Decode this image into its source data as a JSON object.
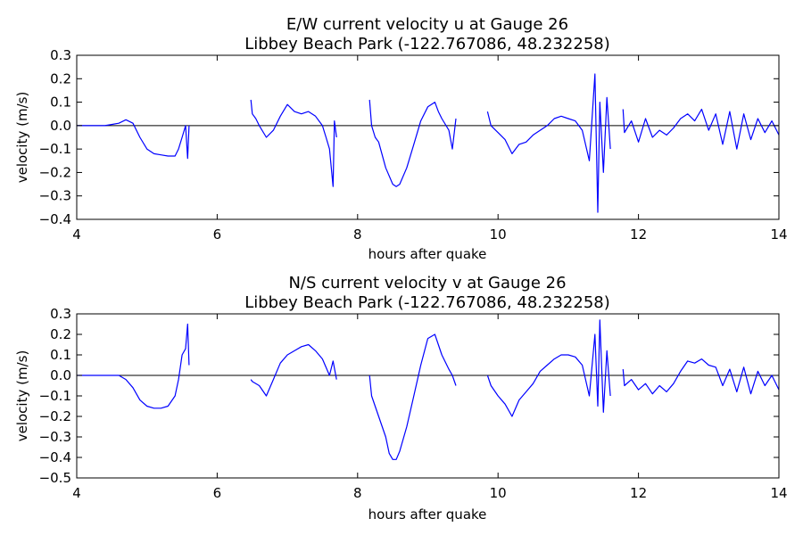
{
  "chart_data": [
    {
      "type": "line",
      "title": "E/W current velocity u at Gauge 26",
      "subtitle": "Libbey Beach Park  (-122.767086, 48.232258)",
      "xlabel": "hours after quake",
      "ylabel": "velocity (m/s)",
      "xlim": [
        4,
        14
      ],
      "ylim": [
        -0.4,
        0.3
      ],
      "xticks": [
        "4",
        "6",
        "8",
        "10",
        "12",
        "14"
      ],
      "yticks": [
        "0.3",
        "0.2",
        "0.1",
        "0.0",
        "−0.1",
        "−0.2",
        "−0.3",
        "−0.4"
      ],
      "zero_line": true,
      "grid": false,
      "series": [
        {
          "color": "#0000ff",
          "segments": [
            {
              "x": [
                4.0,
                4.2,
                4.4,
                4.6,
                4.7,
                4.8,
                4.9,
                5.0,
                5.1,
                5.2,
                5.3,
                5.4,
                5.45,
                5.5,
                5.55,
                5.58,
                5.6
              ],
              "y": [
                0.0,
                0.0,
                0.0,
                0.01,
                0.025,
                0.01,
                -0.05,
                -0.1,
                -0.12,
                -0.125,
                -0.13,
                -0.13,
                -0.1,
                -0.05,
                -0.0,
                -0.14,
                0.0
              ]
            },
            {
              "x": [
                6.48,
                6.5,
                6.55,
                6.6,
                6.7,
                6.8,
                6.9,
                7.0,
                7.1,
                7.2,
                7.3,
                7.4,
                7.5,
                7.55,
                7.6,
                7.65,
                7.67,
                7.7
              ],
              "y": [
                0.11,
                0.05,
                0.03,
                0.0,
                -0.05,
                -0.02,
                0.04,
                0.09,
                0.06,
                0.05,
                0.06,
                0.04,
                0.0,
                -0.05,
                -0.1,
                -0.26,
                0.02,
                -0.05
              ]
            },
            {
              "x": [
                8.17,
                8.2,
                8.25,
                8.3,
                8.4,
                8.5,
                8.55,
                8.6,
                8.7,
                8.8,
                8.9,
                9.0,
                9.1,
                9.15,
                9.2,
                9.3,
                9.35,
                9.4
              ],
              "y": [
                0.11,
                0.0,
                -0.05,
                -0.07,
                -0.18,
                -0.25,
                -0.26,
                -0.25,
                -0.18,
                -0.08,
                0.02,
                0.08,
                0.1,
                0.06,
                0.03,
                -0.02,
                -0.1,
                0.03
              ]
            },
            {
              "x": [
                9.85,
                9.9,
                10.0,
                10.1,
                10.2,
                10.3,
                10.4,
                10.5,
                10.6,
                10.7,
                10.8,
                10.9,
                11.0,
                11.1,
                11.2,
                11.3,
                11.38,
                11.42,
                11.45,
                11.5,
                11.55,
                11.6
              ],
              "y": [
                0.06,
                0.0,
                -0.03,
                -0.06,
                -0.12,
                -0.08,
                -0.07,
                -0.04,
                -0.02,
                0.0,
                0.03,
                0.04,
                0.03,
                0.02,
                -0.02,
                -0.15,
                0.22,
                -0.37,
                0.1,
                -0.2,
                0.12,
                -0.1
              ]
            },
            {
              "x": [
                11.78,
                11.8,
                11.9,
                12.0,
                12.1,
                12.2,
                12.3,
                12.4,
                12.5,
                12.6,
                12.7,
                12.8,
                12.9,
                13.0,
                13.1,
                13.2,
                13.3,
                13.4,
                13.5,
                13.6,
                13.7,
                13.8,
                13.9,
                14.0
              ],
              "y": [
                0.07,
                -0.03,
                0.02,
                -0.07,
                0.03,
                -0.05,
                -0.02,
                -0.04,
                -0.01,
                0.03,
                0.05,
                0.02,
                0.07,
                -0.02,
                0.05,
                -0.08,
                0.06,
                -0.1,
                0.05,
                -0.06,
                0.03,
                -0.03,
                0.02,
                -0.04
              ]
            }
          ]
        }
      ]
    },
    {
      "type": "line",
      "title": "N/S current velocity v at Gauge 26",
      "subtitle": "Libbey Beach Park  (-122.767086, 48.232258)",
      "xlabel": "hours after quake",
      "ylabel": "velocity (m/s)",
      "xlim": [
        4,
        14
      ],
      "ylim": [
        -0.5,
        0.3
      ],
      "xticks": [
        "4",
        "6",
        "8",
        "10",
        "12",
        "14"
      ],
      "yticks": [
        "0.3",
        "0.2",
        "0.1",
        "0.0",
        "−0.1",
        "−0.2",
        "−0.3",
        "−0.4",
        "−0.5"
      ],
      "zero_line": true,
      "grid": false,
      "series": [
        {
          "color": "#0000ff",
          "segments": [
            {
              "x": [
                4.0,
                4.2,
                4.4,
                4.6,
                4.7,
                4.8,
                4.9,
                5.0,
                5.1,
                5.2,
                5.3,
                5.4,
                5.45,
                5.5,
                5.55,
                5.58,
                5.6
              ],
              "y": [
                0.0,
                0.0,
                0.0,
                0.0,
                -0.02,
                -0.06,
                -0.12,
                -0.15,
                -0.16,
                -0.16,
                -0.15,
                -0.1,
                -0.02,
                0.1,
                0.13,
                0.25,
                0.05
              ]
            },
            {
              "x": [
                6.48,
                6.5,
                6.6,
                6.7,
                6.8,
                6.9,
                7.0,
                7.1,
                7.2,
                7.3,
                7.4,
                7.5,
                7.6,
                7.65,
                7.7
              ],
              "y": [
                -0.02,
                -0.03,
                -0.05,
                -0.1,
                -0.02,
                0.06,
                0.1,
                0.12,
                0.14,
                0.15,
                0.12,
                0.08,
                0.0,
                0.07,
                -0.02
              ]
            },
            {
              "x": [
                8.17,
                8.2,
                8.3,
                8.4,
                8.45,
                8.5,
                8.55,
                8.6,
                8.7,
                8.8,
                8.9,
                9.0,
                9.1,
                9.15,
                9.2,
                9.3,
                9.35,
                9.4
              ],
              "y": [
                0.0,
                -0.1,
                -0.2,
                -0.3,
                -0.38,
                -0.41,
                -0.41,
                -0.37,
                -0.25,
                -0.1,
                0.05,
                0.18,
                0.2,
                0.15,
                0.1,
                0.03,
                0.0,
                -0.05
              ]
            },
            {
              "x": [
                9.85,
                9.9,
                10.0,
                10.1,
                10.2,
                10.3,
                10.4,
                10.5,
                10.6,
                10.7,
                10.8,
                10.9,
                11.0,
                11.1,
                11.2,
                11.3,
                11.38,
                11.42,
                11.45,
                11.5,
                11.55,
                11.6
              ],
              "y": [
                0.0,
                -0.05,
                -0.1,
                -0.14,
                -0.2,
                -0.12,
                -0.08,
                -0.04,
                0.02,
                0.05,
                0.08,
                0.1,
                0.1,
                0.09,
                0.05,
                -0.1,
                0.2,
                -0.15,
                0.27,
                -0.18,
                0.12,
                -0.1
              ]
            },
            {
              "x": [
                11.78,
                11.8,
                11.9,
                12.0,
                12.1,
                12.2,
                12.3,
                12.4,
                12.5,
                12.6,
                12.7,
                12.8,
                12.9,
                13.0,
                13.1,
                13.2,
                13.3,
                13.4,
                13.5,
                13.6,
                13.7,
                13.8,
                13.9,
                14.0
              ],
              "y": [
                0.03,
                -0.05,
                -0.02,
                -0.07,
                -0.04,
                -0.09,
                -0.05,
                -0.08,
                -0.04,
                0.02,
                0.07,
                0.06,
                0.08,
                0.05,
                0.04,
                -0.05,
                0.03,
                -0.08,
                0.04,
                -0.09,
                0.02,
                -0.05,
                0.0,
                -0.07
              ]
            }
          ]
        }
      ]
    }
  ]
}
